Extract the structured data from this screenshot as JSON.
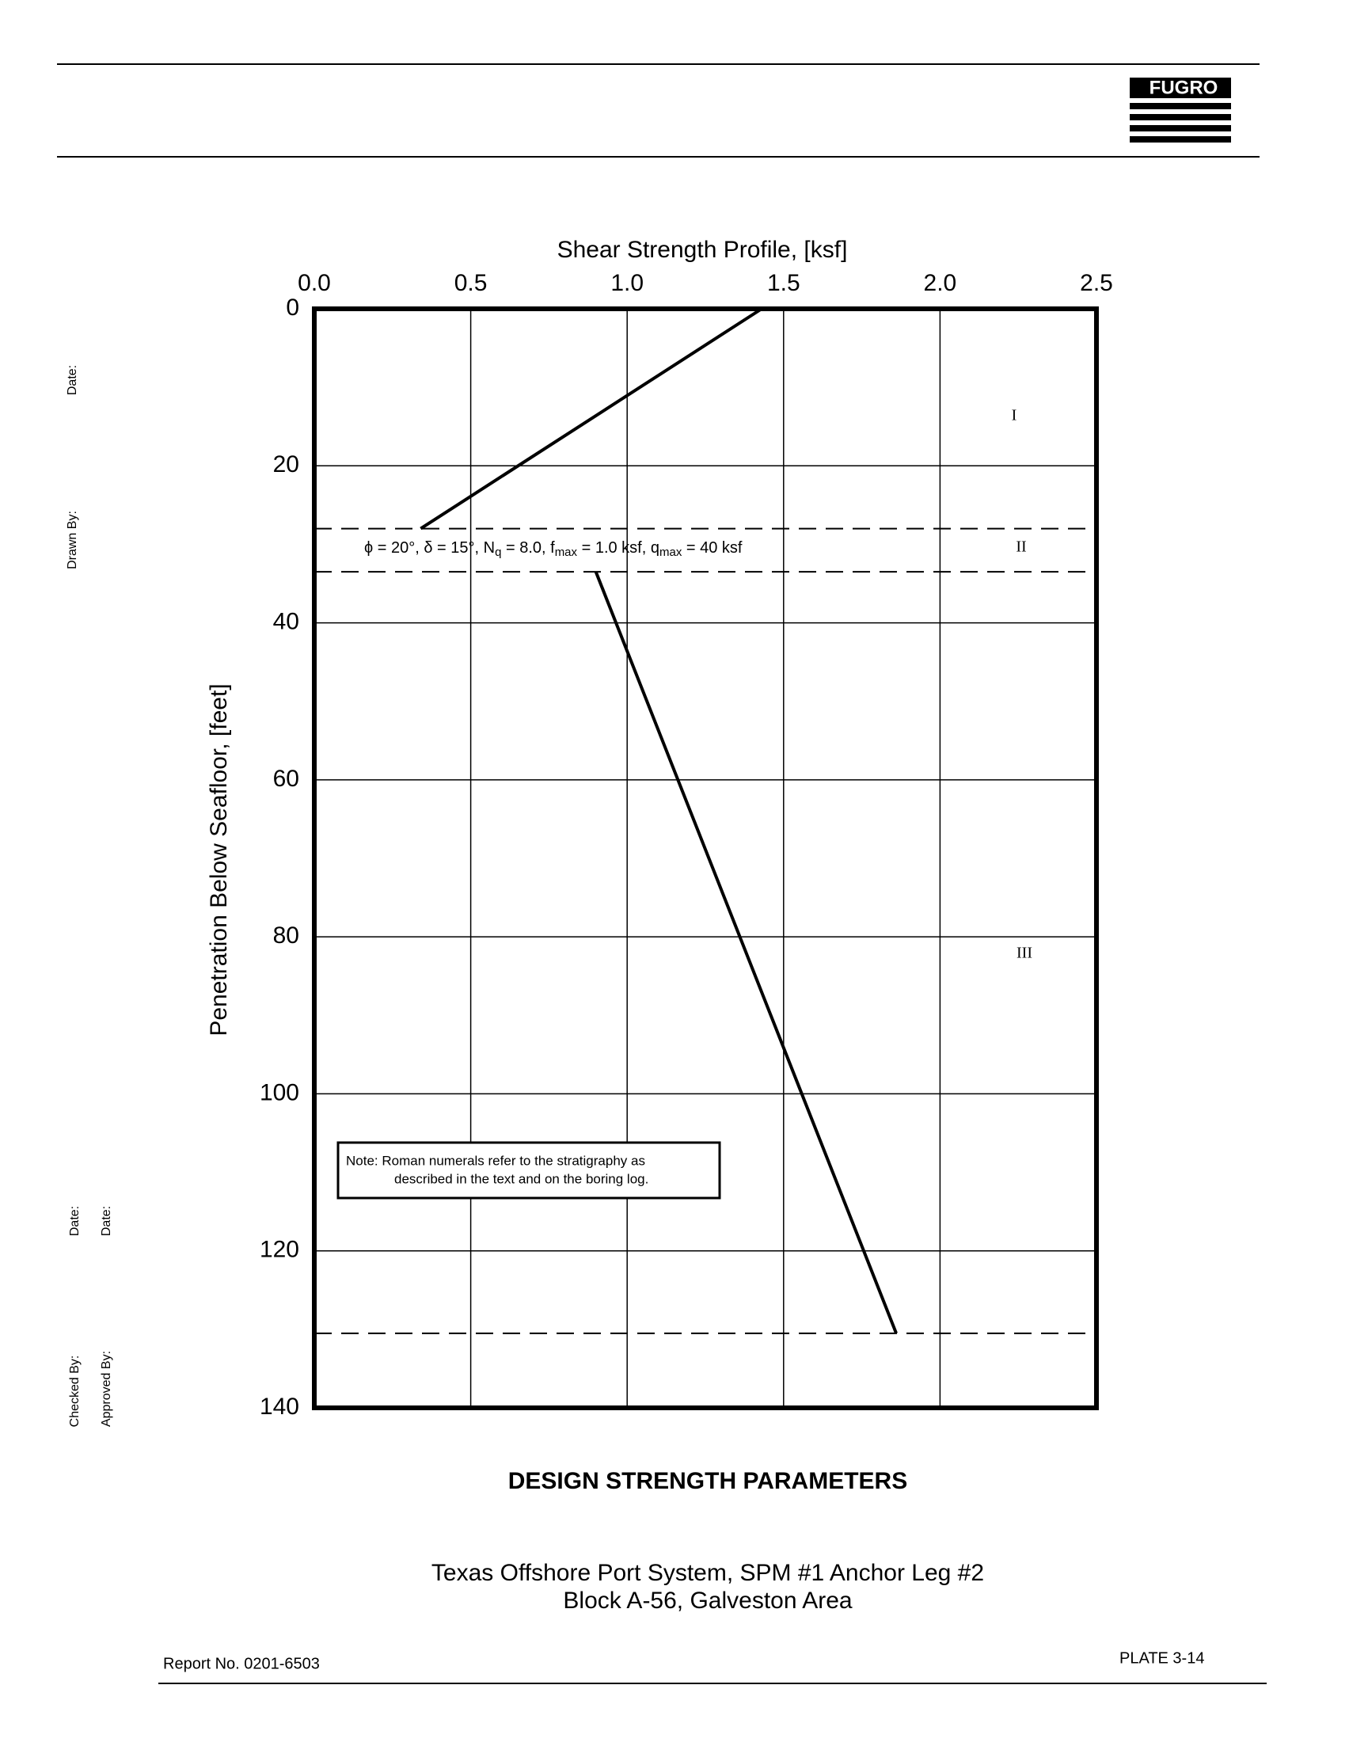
{
  "chart_data": {
    "type": "line",
    "xlabel": "Shear Strength Profile, [ksf]",
    "ylabel": "Penetration Below Seafloor, [feet]",
    "xlim": [
      0,
      2.5
    ],
    "xticks": [
      {
        "value": 0,
        "label": "0.0"
      },
      0.5,
      {
        "value": 1,
        "label": "1.0"
      },
      1.5,
      {
        "value": 2,
        "label": "2.0"
      },
      2.5
    ],
    "ylim": [
      140,
      0
    ],
    "yticks": [
      0,
      20,
      40,
      60,
      80,
      100,
      120,
      140
    ],
    "grid": true,
    "color": "#000000",
    "series": [
      {
        "x": [
          1.43,
          0.34
        ],
        "y": [
          0,
          28
        ]
      },
      {
        "x": [
          0.9,
          1.86
        ],
        "y": [
          33.5,
          130.5
        ]
      }
    ],
    "boundaries": [
      28,
      33.5,
      130.5
    ],
    "strata": [
      "I",
      "II",
      "III"
    ],
    "annotation": [
      "ϕ = 20°, δ = 15°, N",
      "q",
      " = 8.0, f",
      "max",
      " = 1.0 ksf, q",
      "max",
      " = 40 ksf"
    ],
    "note": [
      "Note:  Roman numerals refer to the stratigraphy as",
      "described in the text and on the boring log."
    ]
  },
  "document": {
    "logo": "FUGRO",
    "title": "DESIGN STRENGTH PARAMETERS",
    "subtitle": [
      "Texas Offshore Port System, SPM #1 Anchor Leg #2",
      "Block A-56, Galveston Area"
    ],
    "report": "Report No. 0201-6503",
    "plate": "PLATE 3-14",
    "signoff": [
      "Date:",
      "Drawn By:",
      "Date:",
      "Date:",
      "Checked By:",
      "Approved By:"
    ]
  }
}
